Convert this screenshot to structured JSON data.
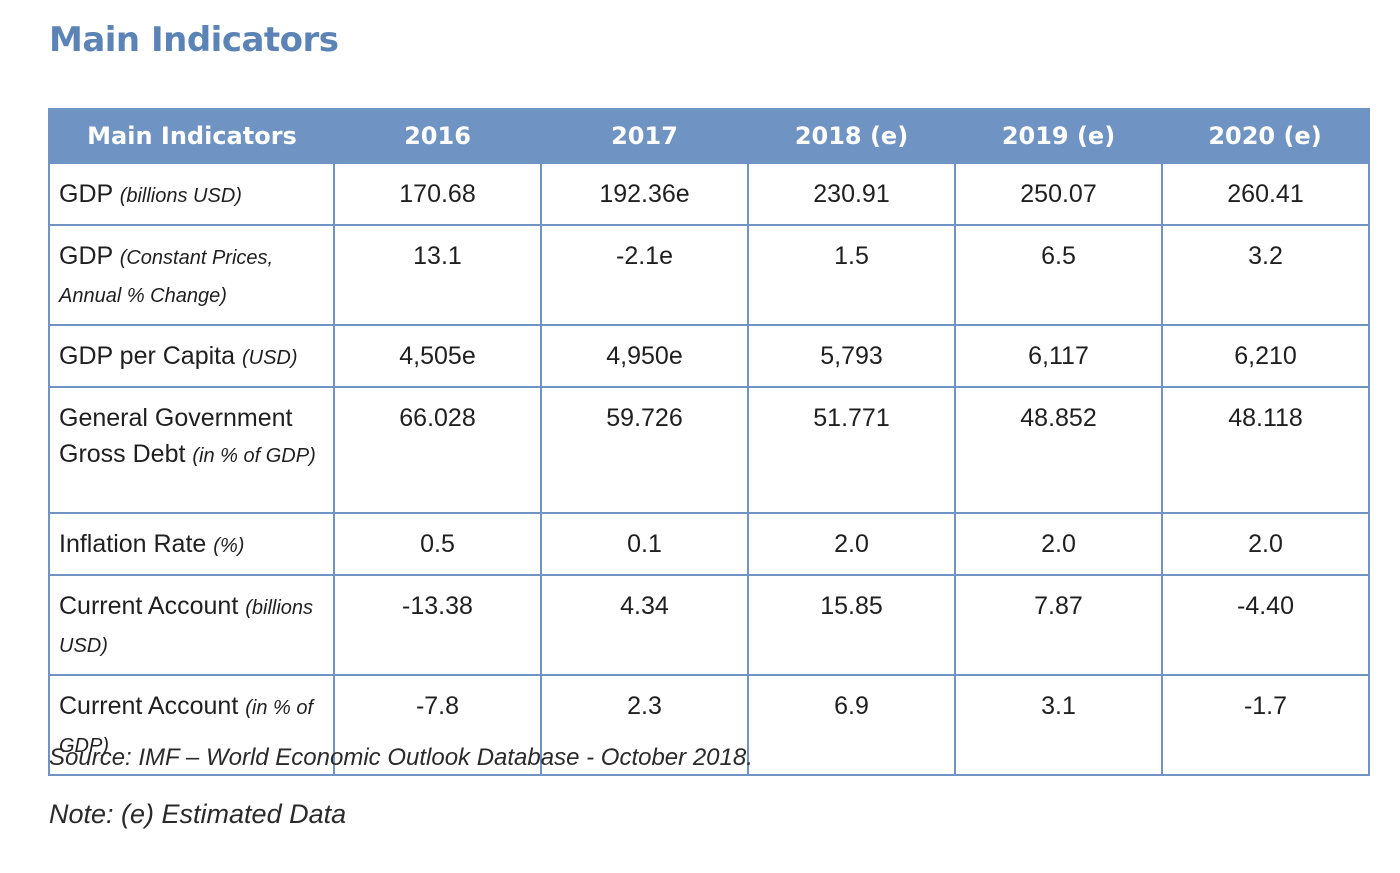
{
  "page": {
    "title": "Main Indicators"
  },
  "table": {
    "headers": [
      "Main Indicators",
      "2016",
      "2017",
      "2018 (e)",
      "2019 (e)",
      "2020 (e)"
    ],
    "rows": [
      {
        "label": "GDP",
        "sublabel": "(billions USD)",
        "values": [
          "170.68",
          "192.36e",
          "230.91",
          "250.07",
          "260.41"
        ]
      },
      {
        "label": "GDP",
        "sublabel": "(Constant Prices, Annual % Change)",
        "values": [
          "13.1",
          "-2.1e",
          "1.5",
          "6.5",
          "3.2"
        ]
      },
      {
        "label": "GDP per Capita",
        "sublabel": "(USD)",
        "values": [
          "4,505e",
          "4,950e",
          "5,793",
          "6,117",
          "6,210"
        ]
      },
      {
        "label": "General Government Gross Debt",
        "sublabel": "(in % of GDP)",
        "values": [
          "66.028",
          "59.726",
          "51.771",
          "48.852",
          "48.118"
        ]
      },
      {
        "label": "Inflation Rate",
        "sublabel": "(%)",
        "values": [
          "0.5",
          "0.1",
          "2.0",
          "2.0",
          "2.0"
        ]
      },
      {
        "label": "Current Account",
        "sublabel": "(billions USD)",
        "values": [
          "-13.38",
          "4.34",
          "15.85",
          "7.87",
          "-4.40"
        ]
      },
      {
        "label": "Current Account",
        "sublabel": "(in % of GDP)",
        "values": [
          "-7.8",
          "2.3",
          "6.9",
          "3.1",
          "-1.7"
        ]
      }
    ]
  },
  "footer": {
    "source": "Source: IMF – World Economic Outlook Database - October 2018.",
    "note": "Note: (e) Estimated Data"
  },
  "colors": {
    "title": "#5b83b5",
    "header_background": "#6f93c2",
    "header_text": "#ffffff",
    "border": "#6f93c2"
  }
}
